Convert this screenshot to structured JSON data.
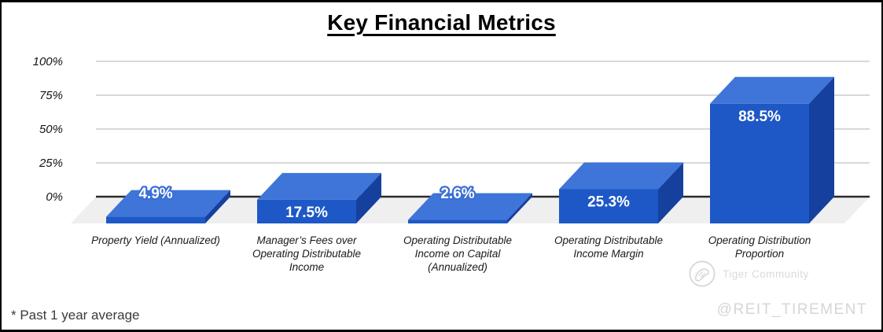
{
  "chart_data": {
    "type": "bar",
    "variant": "3d-column",
    "title": "Key Financial Metrics",
    "categories": [
      "Property Yield (Annualized)",
      "Manager’s Fees over Operating Distributable Income",
      "Operating Distributable Income on Capital (Annualized)",
      "Operating Distributable Income Margin",
      "Operating Distribution Proportion"
    ],
    "category_lines": [
      [
        "Property Yield (Annualized)"
      ],
      [
        "Manager’s Fees over",
        "Operating Distributable",
        "Income"
      ],
      [
        "Operating Distributable",
        "Income on Capital",
        "(Annualized)"
      ],
      [
        "Operating Distributable",
        "Income Margin"
      ],
      [
        "Operating Distribution",
        "Proportion"
      ]
    ],
    "values": [
      4.9,
      17.5,
      2.6,
      25.3,
      88.5
    ],
    "value_labels": [
      "4.9%",
      "17.5%",
      "2.6%",
      "25.3%",
      "88.5%"
    ],
    "ylim": [
      0,
      100
    ],
    "yticks": [
      100,
      75,
      50,
      25,
      0
    ],
    "ytick_labels": [
      "100%",
      "75%",
      "50%",
      "25%",
      "0%"
    ],
    "grid": true,
    "legend": false
  },
  "footer": {
    "note": "* Past 1 year average"
  },
  "watermark": {
    "community": "Tiger Community",
    "handle": "@REIT_TIREMENT"
  },
  "colors": {
    "bar_front": "#1d58c6",
    "bar_top": "#3f74d9",
    "bar_side": "#16409e",
    "floor": "#efefef",
    "gridline": "#cbcbcb",
    "axis": "#2a2a2a",
    "value_label": "#ffffff",
    "value_label_outline": "#3a6fd5",
    "watermark": "#d9d9d9"
  }
}
